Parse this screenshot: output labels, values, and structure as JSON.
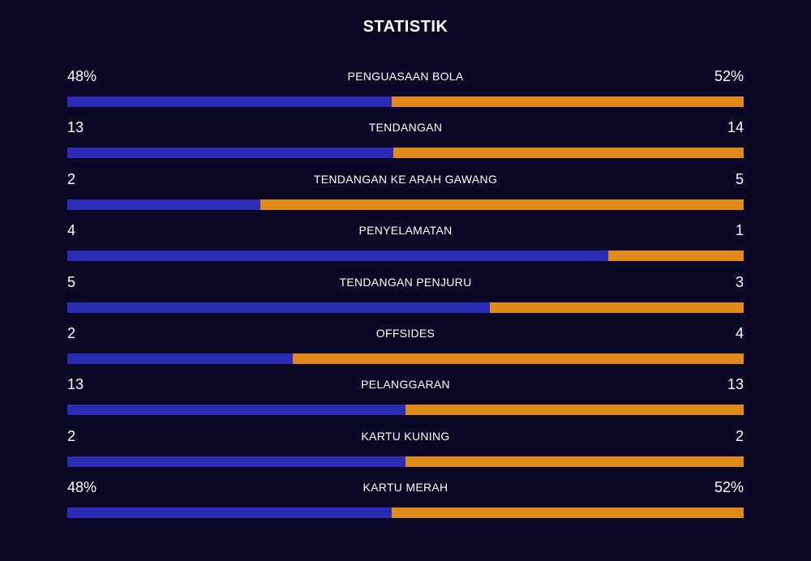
{
  "header": {
    "title": "STATISTIK"
  },
  "colors": {
    "background": "#0a0824",
    "home": "#2a2cb5",
    "away": "#e08a1a"
  },
  "stats": [
    {
      "label": "PENGUASAAN BOLA",
      "home": "48%",
      "away": "52%",
      "home_share": 0.48
    },
    {
      "label": "TENDANGAN",
      "home": "13",
      "away": "14",
      "home_share": 0.4815
    },
    {
      "label": "TENDANGAN KE ARAH GAWANG",
      "home": "2",
      "away": "5",
      "home_share": 0.2857
    },
    {
      "label": "PENYELAMATAN",
      "home": "4",
      "away": "1",
      "home_share": 0.8
    },
    {
      "label": "TENDANGAN PENJURU",
      "home": "5",
      "away": "3",
      "home_share": 0.625
    },
    {
      "label": "OFFSIDES",
      "home": "2",
      "away": "4",
      "home_share": 0.3333
    },
    {
      "label": "PELANGGARAN",
      "home": "13",
      "away": "13",
      "home_share": 0.5
    },
    {
      "label": "KARTU KUNING",
      "home": "2",
      "away": "2",
      "home_share": 0.5
    },
    {
      "label": "KARTU MERAH",
      "home": "48%",
      "away": "52%",
      "home_share": 0.48
    }
  ]
}
